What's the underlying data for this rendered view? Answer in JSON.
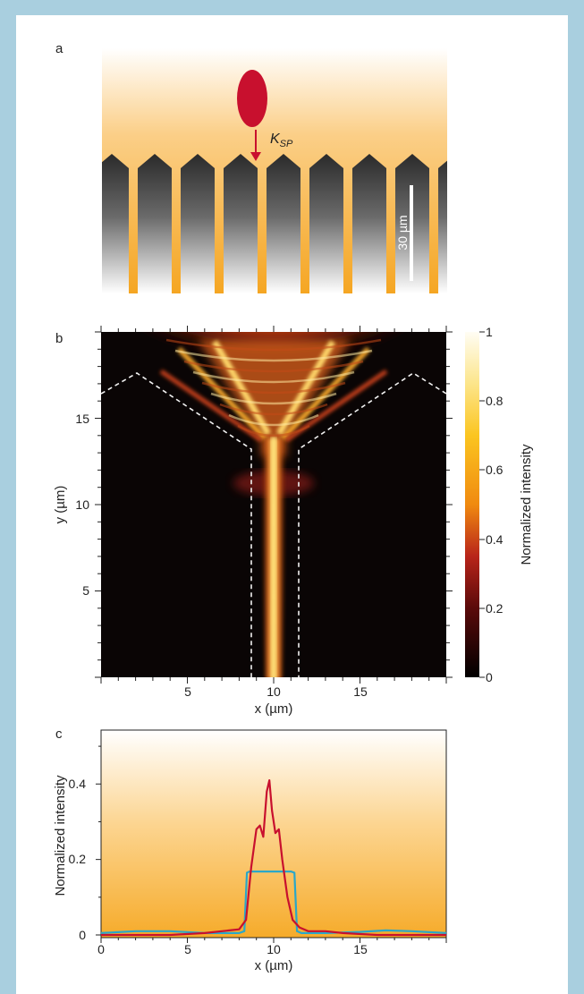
{
  "panel_a": {
    "label": "a",
    "wavevector_label": "K",
    "wavevector_subscript": "SP",
    "scale_bar_label": "30 µm"
  },
  "panel_b": {
    "label": "b",
    "xlabel": "x (µm)",
    "ylabel": "y (µm)",
    "x_ticks": [
      "5",
      "10",
      "15"
    ],
    "y_ticks": [
      "5",
      "10",
      "15"
    ],
    "colorbar_label": "Normalized intensity",
    "colorbar_ticks": [
      "0",
      "0.2",
      "0.4",
      "0.6",
      "0.8",
      "1"
    ]
  },
  "panel_c": {
    "label": "c",
    "xlabel": "x (µm)",
    "ylabel": "Normalized intensity",
    "x_ticks": [
      "0",
      "5",
      "10",
      "15"
    ],
    "y_ticks": [
      "0",
      "0.2",
      "0.4"
    ]
  },
  "colors": {
    "frame": "#a9cfdf",
    "gold": "#f5a623",
    "red_curve": "#c8102e",
    "cyan_curve": "#2aa7c9",
    "particle": "#c8102e"
  },
  "chart_data": [
    {
      "type": "heatmap",
      "xlabel": "x (µm)",
      "ylabel": "y (µm)",
      "xlim": [
        0,
        20
      ],
      "ylim": [
        0,
        20
      ],
      "colorbar": {
        "label": "Normalized intensity",
        "range": [
          0,
          1
        ]
      }
    },
    {
      "type": "line",
      "xlabel": "x (µm)",
      "ylabel": "Normalized intensity",
      "xlim": [
        0,
        20
      ],
      "ylim": [
        0,
        0.55
      ],
      "series": [
        {
          "color": "#c8102e",
          "x": [
            0,
            2,
            4,
            6,
            7,
            8,
            8.4,
            8.7,
            9.0,
            9.2,
            9.4,
            9.6,
            9.75,
            9.9,
            10.1,
            10.3,
            10.5,
            10.8,
            11.1,
            11.5,
            12,
            13,
            14,
            16,
            18,
            20
          ],
          "y": [
            0.0,
            0.0,
            0.0,
            0.005,
            0.01,
            0.015,
            0.04,
            0.18,
            0.28,
            0.29,
            0.26,
            0.38,
            0.41,
            0.33,
            0.27,
            0.28,
            0.2,
            0.1,
            0.04,
            0.02,
            0.01,
            0.01,
            0.005,
            0.0,
            0.0,
            0.0
          ]
        },
        {
          "color": "#2aa7c9",
          "x": [
            0,
            2,
            4,
            6,
            8,
            8.3,
            8.45,
            8.6,
            11.0,
            11.2,
            11.35,
            11.6,
            13,
            15,
            16.5,
            18,
            20
          ],
          "y": [
            0.005,
            0.01,
            0.01,
            0.005,
            0.005,
            0.01,
            0.165,
            0.168,
            0.168,
            0.165,
            0.01,
            0.005,
            0.005,
            0.008,
            0.012,
            0.01,
            0.005
          ]
        }
      ]
    }
  ]
}
